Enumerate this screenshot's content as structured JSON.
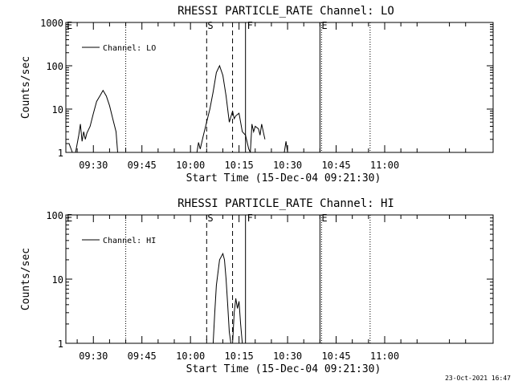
{
  "chart_data": [
    {
      "type": "line",
      "title": "RHESSI PARTICLE_RATE Channel: LO",
      "xlabel": "Start Time (15-Dec-04 09:21:30)",
      "ylabel": "Counts/sec",
      "yscale": "log",
      "ylim": [
        1,
        1000
      ],
      "y_ticks": [
        "1",
        "10",
        "100",
        "1000"
      ],
      "xlim_minutes": [
        0,
        132
      ],
      "x_ticks": [
        "09:30",
        "09:45",
        "10:00",
        "10:15",
        "10:30",
        "10:45",
        "11:00"
      ],
      "legend": {
        "position": "top-left",
        "entries": [
          "Channel: LO"
        ]
      },
      "markers": {
        "dotted": [
          "09:40:00",
          "10:40:30",
          "10:55:30"
        ],
        "dashed": [
          {
            "time": "10:05:00",
            "label": "S"
          },
          {
            "time": "10:13:00",
            "label": ""
          }
        ],
        "solid": [
          {
            "time": "10:17:00",
            "label": "F"
          },
          {
            "time": "10:40:00",
            "label": "E"
          }
        ],
        "edge_labels": [
          "E"
        ]
      },
      "series": [
        {
          "name": "Channel: LO",
          "segments": [
            {
              "x": [
                "09:21:30",
                "09:22:30",
                "09:23:30",
                "09:24:30",
                "09:25:30",
                "09:26:00",
                "09:26:30",
                "09:27:00",
                "09:27:30",
                "09:28:00",
                "09:29:00",
                "09:30:00",
                "09:31:00",
                "09:32:00",
                "09:33:00",
                "09:34:00",
                "09:35:00",
                "09:36:00",
                "09:37:00",
                "09:37:30"
              ],
              "y": [
                1.6,
                1.6,
                1.0,
                1.0,
                2.5,
                4.5,
                1.8,
                3.0,
                2.0,
                2.8,
                4.0,
                8.0,
                15,
                20,
                27,
                20,
                12,
                6,
                3,
                1.0
              ]
            },
            {
              "x": [
                "10:02:00",
                "10:02:30",
                "10:03:00",
                "10:04:00",
                "10:05:00",
                "10:06:00",
                "10:07:00",
                "10:08:00",
                "10:09:00",
                "10:10:00",
                "10:11:00",
                "10:12:00",
                "10:13:00",
                "10:13:30",
                "10:14:00",
                "10:15:00",
                "10:15:30",
                "10:16:00",
                "10:17:00",
                "10:18:00",
                "10:18:30",
                "10:19:00",
                "10:19:30",
                "10:20:00",
                "10:21:00",
                "10:21:30",
                "10:22:00",
                "10:22:30",
                "10:23:00"
              ],
              "y": [
                1.0,
                1.7,
                1.2,
                2.5,
                5,
                10,
                25,
                70,
                100,
                60,
                20,
                5,
                9,
                6,
                7,
                8,
                5,
                3,
                2.5,
                1.2,
                1.0,
                4.5,
                3.0,
                4.0,
                3.5,
                2.5,
                4.5,
                3.0,
                2.0
              ]
            },
            {
              "x": [
                "10:29:00",
                "10:29:30",
                "10:30:00"
              ],
              "y": [
                1.0,
                1.8,
                1.0
              ]
            }
          ]
        }
      ]
    },
    {
      "type": "line",
      "title": "RHESSI PARTICLE_RATE Channel: HI",
      "xlabel": "Start Time (15-Dec-04 09:21:30)",
      "ylabel": "Counts/sec",
      "yscale": "log",
      "ylim": [
        1,
        100
      ],
      "y_ticks": [
        "1",
        "10",
        "100"
      ],
      "xlim_minutes": [
        0,
        132
      ],
      "x_ticks": [
        "09:30",
        "09:45",
        "10:00",
        "10:15",
        "10:30",
        "10:45",
        "11:00"
      ],
      "legend": {
        "position": "top-left",
        "entries": [
          "Channel: HI"
        ]
      },
      "markers": {
        "dotted": [
          "09:40:00",
          "10:40:30",
          "10:55:30"
        ],
        "dashed": [
          {
            "time": "10:05:00",
            "label": "S"
          },
          {
            "time": "10:13:00",
            "label": ""
          }
        ],
        "solid": [
          {
            "time": "10:17:00",
            "label": "F"
          },
          {
            "time": "10:40:00",
            "label": "E"
          }
        ],
        "edge_labels": [
          "E"
        ]
      },
      "series": [
        {
          "name": "Channel: HI",
          "segments": [
            {
              "x": [
                "10:07:00",
                "10:07:30",
                "10:08:00",
                "10:09:00",
                "10:10:00",
                "10:10:30",
                "10:11:00",
                "10:11:30",
                "10:12:00",
                "10:12:30"
              ],
              "y": [
                1.0,
                3.0,
                8.0,
                20,
                25,
                20,
                10,
                4,
                1.5,
                1.0
              ]
            },
            {
              "x": [
                "10:13:00",
                "10:13:30",
                "10:14:00",
                "10:14:30",
                "10:15:00",
                "10:15:30",
                "10:16:00"
              ],
              "y": [
                1.0,
                3.0,
                5.0,
                3.5,
                4.5,
                2.0,
                1.0
              ]
            }
          ]
        }
      ]
    }
  ],
  "timestamp": "23-Oct-2021 16:47"
}
